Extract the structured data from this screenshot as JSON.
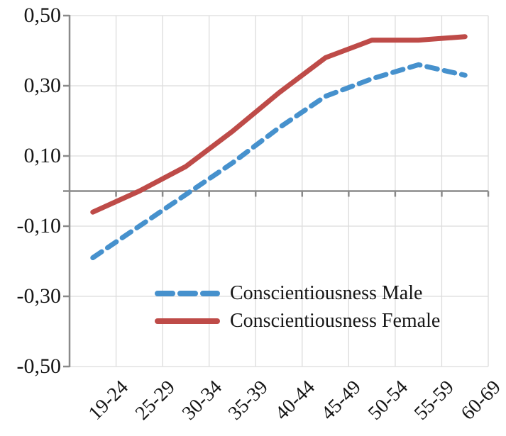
{
  "chart_data": {
    "type": "line",
    "title": "",
    "xlabel": "",
    "ylabel": "",
    "categories": [
      "19-24",
      "25-29",
      "30-34",
      "35-39",
      "40-44",
      "45-49",
      "50-54",
      "55-59",
      "60-69"
    ],
    "series": [
      {
        "name": "Conscientiousness Male",
        "color": "#4691CD",
        "line_style": "dashed",
        "values": [
          -0.19,
          -0.1,
          -0.01,
          0.08,
          0.18,
          0.27,
          0.32,
          0.36,
          0.33
        ]
      },
      {
        "name": "Conscientiousness Female",
        "color": "#BE4B48",
        "line_style": "solid",
        "values": [
          -0.06,
          0.0,
          0.07,
          0.17,
          0.28,
          0.38,
          0.43,
          0.43,
          0.44
        ]
      }
    ],
    "ylim": [
      -0.5,
      0.5
    ],
    "yticks": [
      0.5,
      0.3,
      0.1,
      -0.1,
      -0.3,
      -0.5
    ],
    "ytick_labels": [
      "0,50",
      "0,30",
      "0,10",
      "-0,10",
      "-0,30",
      "-0,50"
    ],
    "decimal_separator": ",",
    "grid": "on",
    "gridline_color": "#DCDCDC",
    "axis_color": "#8A8A8A",
    "text_color": "#161616",
    "legend_position": "inside-lower-center",
    "legend": [
      "Conscientiousness Male",
      "Conscientiousness Female"
    ]
  }
}
